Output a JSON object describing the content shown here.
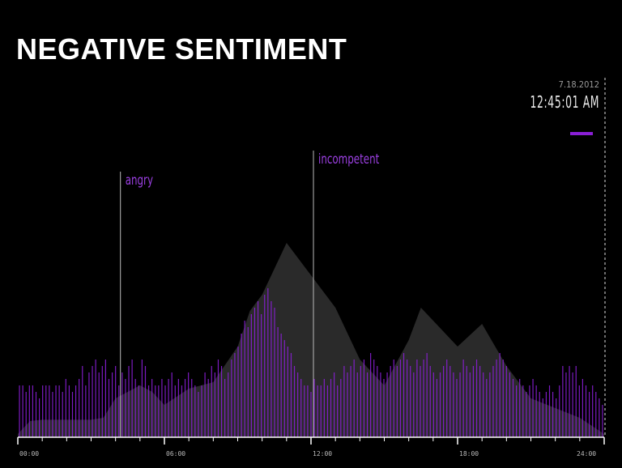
{
  "title": "NEGATIVE SENTIMENT",
  "timestamp": {
    "date": "7.18.2012",
    "time": "12:45:01 AM"
  },
  "colors": {
    "background": "#000000",
    "bars": "#8a1fd6",
    "area": "#2a2a2a",
    "axis": "#ffffff"
  },
  "chart_data": {
    "type": "bar",
    "xlabel": "",
    "ylabel": "",
    "xlim": [
      0,
      24
    ],
    "x_ticks": [
      "00:00",
      "06:00",
      "12:00",
      "18:00",
      "24:00"
    ],
    "area_series": {
      "x": [
        0,
        0.5,
        1,
        2,
        3,
        3.5,
        4,
        5,
        5.5,
        6,
        7,
        8,
        9,
        9.5,
        10,
        11,
        12,
        13,
        14,
        15,
        16,
        16.5,
        17,
        18,
        19,
        20,
        21,
        22,
        23,
        24
      ],
      "values": [
        0.5,
        2.5,
        2.7,
        2.7,
        2.7,
        3.0,
        6.0,
        8.0,
        7.0,
        5.0,
        7.5,
        8.5,
        14.0,
        19.5,
        22.0,
        30.0,
        25.0,
        20.0,
        12.0,
        8.0,
        15.0,
        20.0,
        18.0,
        14.0,
        17.5,
        11.0,
        6.0,
        4.5,
        3.0,
        0.5
      ]
    },
    "bar_values": [
      8,
      8,
      7,
      8,
      8,
      7,
      6,
      8,
      8,
      8,
      7,
      8,
      8,
      7,
      9,
      8,
      7,
      8,
      9,
      11,
      8,
      10,
      11,
      12,
      10,
      11,
      12,
      9,
      10,
      11,
      8,
      10,
      9,
      11,
      12,
      9,
      8,
      12,
      11,
      8,
      9,
      8,
      8,
      9,
      8,
      9,
      10,
      8,
      9,
      8,
      9,
      10,
      9,
      8,
      7,
      8,
      10,
      9,
      11,
      10,
      12,
      11,
      9,
      10,
      12,
      13,
      14,
      16,
      18,
      17,
      19,
      20,
      21,
      19,
      22,
      23,
      21,
      20,
      17,
      16,
      15,
      14,
      13,
      11,
      10,
      9,
      8,
      8,
      7,
      9,
      8,
      8,
      9,
      8,
      9,
      10,
      8,
      9,
      11,
      10,
      11,
      12,
      10,
      11,
      12,
      10,
      13,
      12,
      11,
      10,
      9,
      10,
      11,
      12,
      11,
      12,
      13,
      12,
      11,
      10,
      12,
      11,
      12,
      13,
      11,
      10,
      9,
      10,
      11,
      12,
      11,
      10,
      9,
      10,
      12,
      11,
      10,
      11,
      12,
      11,
      10,
      9,
      10,
      11,
      12,
      13,
      12,
      11,
      10,
      9,
      8,
      9,
      8,
      7,
      8,
      9,
      8,
      7,
      6,
      7,
      8,
      7,
      6,
      8,
      11,
      10,
      11,
      10,
      11,
      8,
      9,
      8,
      7,
      8,
      7,
      6,
      5
    ],
    "bar_max": 30,
    "annotations": [
      {
        "label": "angry",
        "x": 4.2
      },
      {
        "label": "incompetent",
        "x": 12.1
      }
    ]
  }
}
